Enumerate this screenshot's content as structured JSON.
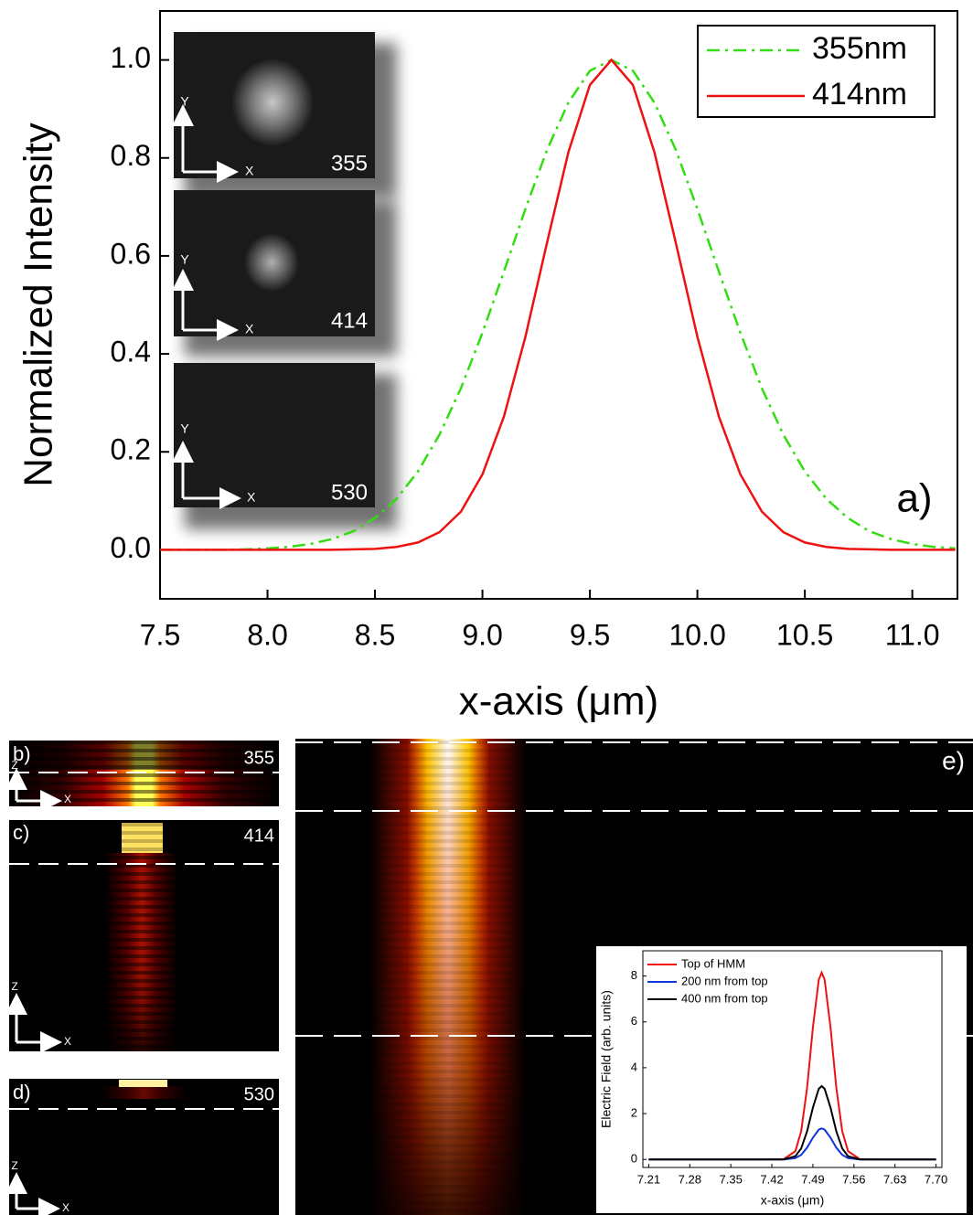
{
  "chart_data": [
    {
      "type": "line",
      "panel_label": "a)",
      "ylabel": "Normalized Intensity",
      "xlabel": "x-axis (μm)",
      "xlim": [
        7.5,
        11.21
      ],
      "ylim": [
        -0.1,
        1.1
      ],
      "xticks": [
        7.5,
        {
          "value": 8,
          "label": "8.0"
        },
        8.5,
        {
          "value": 9,
          "label": "9.0"
        },
        9.5,
        {
          "value": 10,
          "label": "10.0"
        },
        10.5,
        {
          "value": 11,
          "label": "11.0"
        }
      ],
      "yticks": [
        {
          "value": 0,
          "label": "0.0"
        },
        0.2,
        0.4,
        0.6,
        0.8,
        {
          "value": 1,
          "label": "1.0"
        }
      ],
      "legend": "upper right",
      "grid": false,
      "x": [
        7.5,
        7.6,
        7.7,
        7.8,
        7.9,
        8.0,
        8.1,
        8.2,
        8.3,
        8.4,
        8.5,
        8.6,
        8.7,
        8.8,
        8.9,
        9.0,
        9.1,
        9.2,
        9.3,
        9.4,
        9.5,
        9.6,
        9.7,
        9.8,
        9.9,
        10.0,
        10.1,
        10.2,
        10.3,
        10.4,
        10.5,
        10.6,
        10.7,
        10.8,
        10.9,
        11.0,
        11.1,
        11.2
      ],
      "series": [
        {
          "name": "355nm",
          "color": "#33dd11",
          "linestyle": "dash-dot",
          "values": [
            0,
            0,
            0,
            0,
            0.001,
            0.003,
            0.006,
            0.012,
            0.022,
            0.038,
            0.065,
            0.104,
            0.16,
            0.235,
            0.33,
            0.443,
            0.568,
            0.696,
            0.816,
            0.913,
            0.978,
            1,
            0.978,
            0.913,
            0.816,
            0.696,
            0.568,
            0.443,
            0.33,
            0.235,
            0.16,
            0.104,
            0.065,
            0.038,
            0.022,
            0.012,
            0.006,
            0.003
          ]
        },
        {
          "name": "414nm",
          "color": "#ee1111",
          "linestyle": "solid",
          "values": [
            0,
            0,
            0,
            0,
            0,
            0,
            0,
            0,
            0,
            0.001,
            0.002,
            0.006,
            0.015,
            0.036,
            0.078,
            0.154,
            0.272,
            0.435,
            0.626,
            0.812,
            0.949,
            1,
            0.949,
            0.812,
            0.626,
            0.435,
            0.272,
            0.154,
            0.078,
            0.036,
            0.015,
            0.006,
            0.002,
            0.001,
            0,
            0,
            0,
            0
          ]
        }
      ]
    },
    {
      "type": "line",
      "ylabel": "Electric Field (arb. units)",
      "xlabel": "x-axis (μm)",
      "xlim": [
        7.2,
        7.71
      ],
      "ylim": [
        -0.35,
        9.1
      ],
      "xticks": [
        7.21,
        7.28,
        7.35,
        7.42,
        7.49,
        7.56,
        7.63,
        {
          "value": 7.7,
          "label": "7.70"
        }
      ],
      "yticks": [
        0,
        2,
        4,
        6,
        8
      ],
      "legend": "upper left",
      "grid": false,
      "x": [
        7.21,
        7.4,
        7.44,
        7.46,
        7.47,
        7.48,
        7.49,
        7.5,
        7.505,
        7.51,
        7.52,
        7.53,
        7.54,
        7.55,
        7.57,
        7.61,
        7.7
      ],
      "series": [
        {
          "name": "Top of HMM",
          "color": "#ee1111",
          "linestyle": "solid",
          "values": [
            0,
            0,
            0.01,
            0.36,
            1.23,
            3.11,
            5.76,
            7.84,
            8.15,
            7.84,
            5.76,
            3.11,
            1.23,
            0.36,
            0.01,
            0,
            0
          ]
        },
        {
          "name": "200 nm from top",
          "color": "#1133dd",
          "linestyle": "solid",
          "values": [
            0,
            0,
            0,
            0.06,
            0.2,
            0.51,
            0.95,
            1.3,
            1.35,
            1.3,
            0.95,
            0.51,
            0.2,
            0.06,
            0,
            0,
            0
          ]
        },
        {
          "name": "400 nm from top",
          "color": "#000000",
          "linestyle": "solid",
          "values": [
            0,
            0,
            0,
            0.14,
            0.48,
            1.22,
            2.26,
            3.08,
            3.2,
            3.08,
            2.26,
            1.22,
            0.48,
            0.14,
            0,
            0,
            0
          ]
        }
      ]
    }
  ],
  "insets": [
    {
      "label": "355",
      "axes": [
        "Y",
        "X"
      ]
    },
    {
      "label": "414",
      "axes": [
        "Y",
        "X"
      ]
    },
    {
      "label": "530",
      "axes": [
        "Y",
        "X"
      ]
    }
  ],
  "panels": [
    {
      "tag": "b)",
      "label": "355",
      "axes": [
        "Z",
        "X"
      ]
    },
    {
      "tag": "c)",
      "label": "414",
      "axes": [
        "Z",
        "X"
      ]
    },
    {
      "tag": "d)",
      "label": "530",
      "axes": [
        "Z",
        "X"
      ]
    },
    {
      "tag": "e)"
    }
  ]
}
